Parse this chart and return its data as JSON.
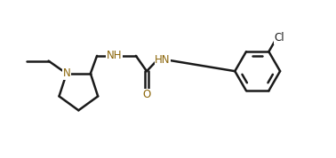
{
  "bg_color": "#ffffff",
  "line_color": "#1a1a1a",
  "n_color": "#8B6508",
  "o_color": "#8B6508",
  "line_width": 1.8,
  "font_size": 8.5,
  "figsize": [
    3.78,
    1.78
  ],
  "dpi": 100,
  "xlim": [
    0,
    10
  ],
  "ylim": [
    0,
    5
  ]
}
